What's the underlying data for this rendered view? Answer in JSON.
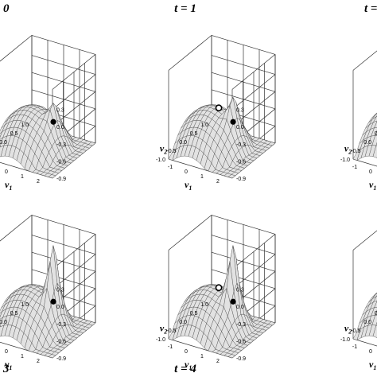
{
  "panels": [
    {
      "id": "top-left",
      "title": "0",
      "peak": 0.35,
      "marker_open": false
    },
    {
      "id": "top-center",
      "title": "t = 1",
      "peak": 0.45,
      "marker_open": true
    },
    {
      "id": "top-right",
      "title": "t =",
      "peak": 0.0,
      "marker_open": true
    },
    {
      "id": "bottom-left",
      "title": "3",
      "peak": 1.0,
      "marker_open": false
    },
    {
      "id": "bottom-center",
      "title": "t = 4",
      "peak": 1.0,
      "marker_open": true
    },
    {
      "id": "bottom-right",
      "title": "",
      "peak": 0.0,
      "marker_open": true
    }
  ],
  "axes": {
    "z_ticks": [
      "0.3",
      "0.0",
      "-0.3",
      "-0.6",
      "-0.9"
    ],
    "v1_ticks": [
      "-1",
      "0",
      "1",
      "2"
    ],
    "v2_ticks": [
      "1.0",
      "0.5",
      "0.0",
      "-0.5",
      "-1.0"
    ],
    "v1_label": "v",
    "v1_sub": "1",
    "v2_label": "v",
    "v2_sub": "2"
  },
  "colors": {
    "surface": "#e2e2e2",
    "mesh": "#3a3a3a",
    "box": "#333333"
  }
}
